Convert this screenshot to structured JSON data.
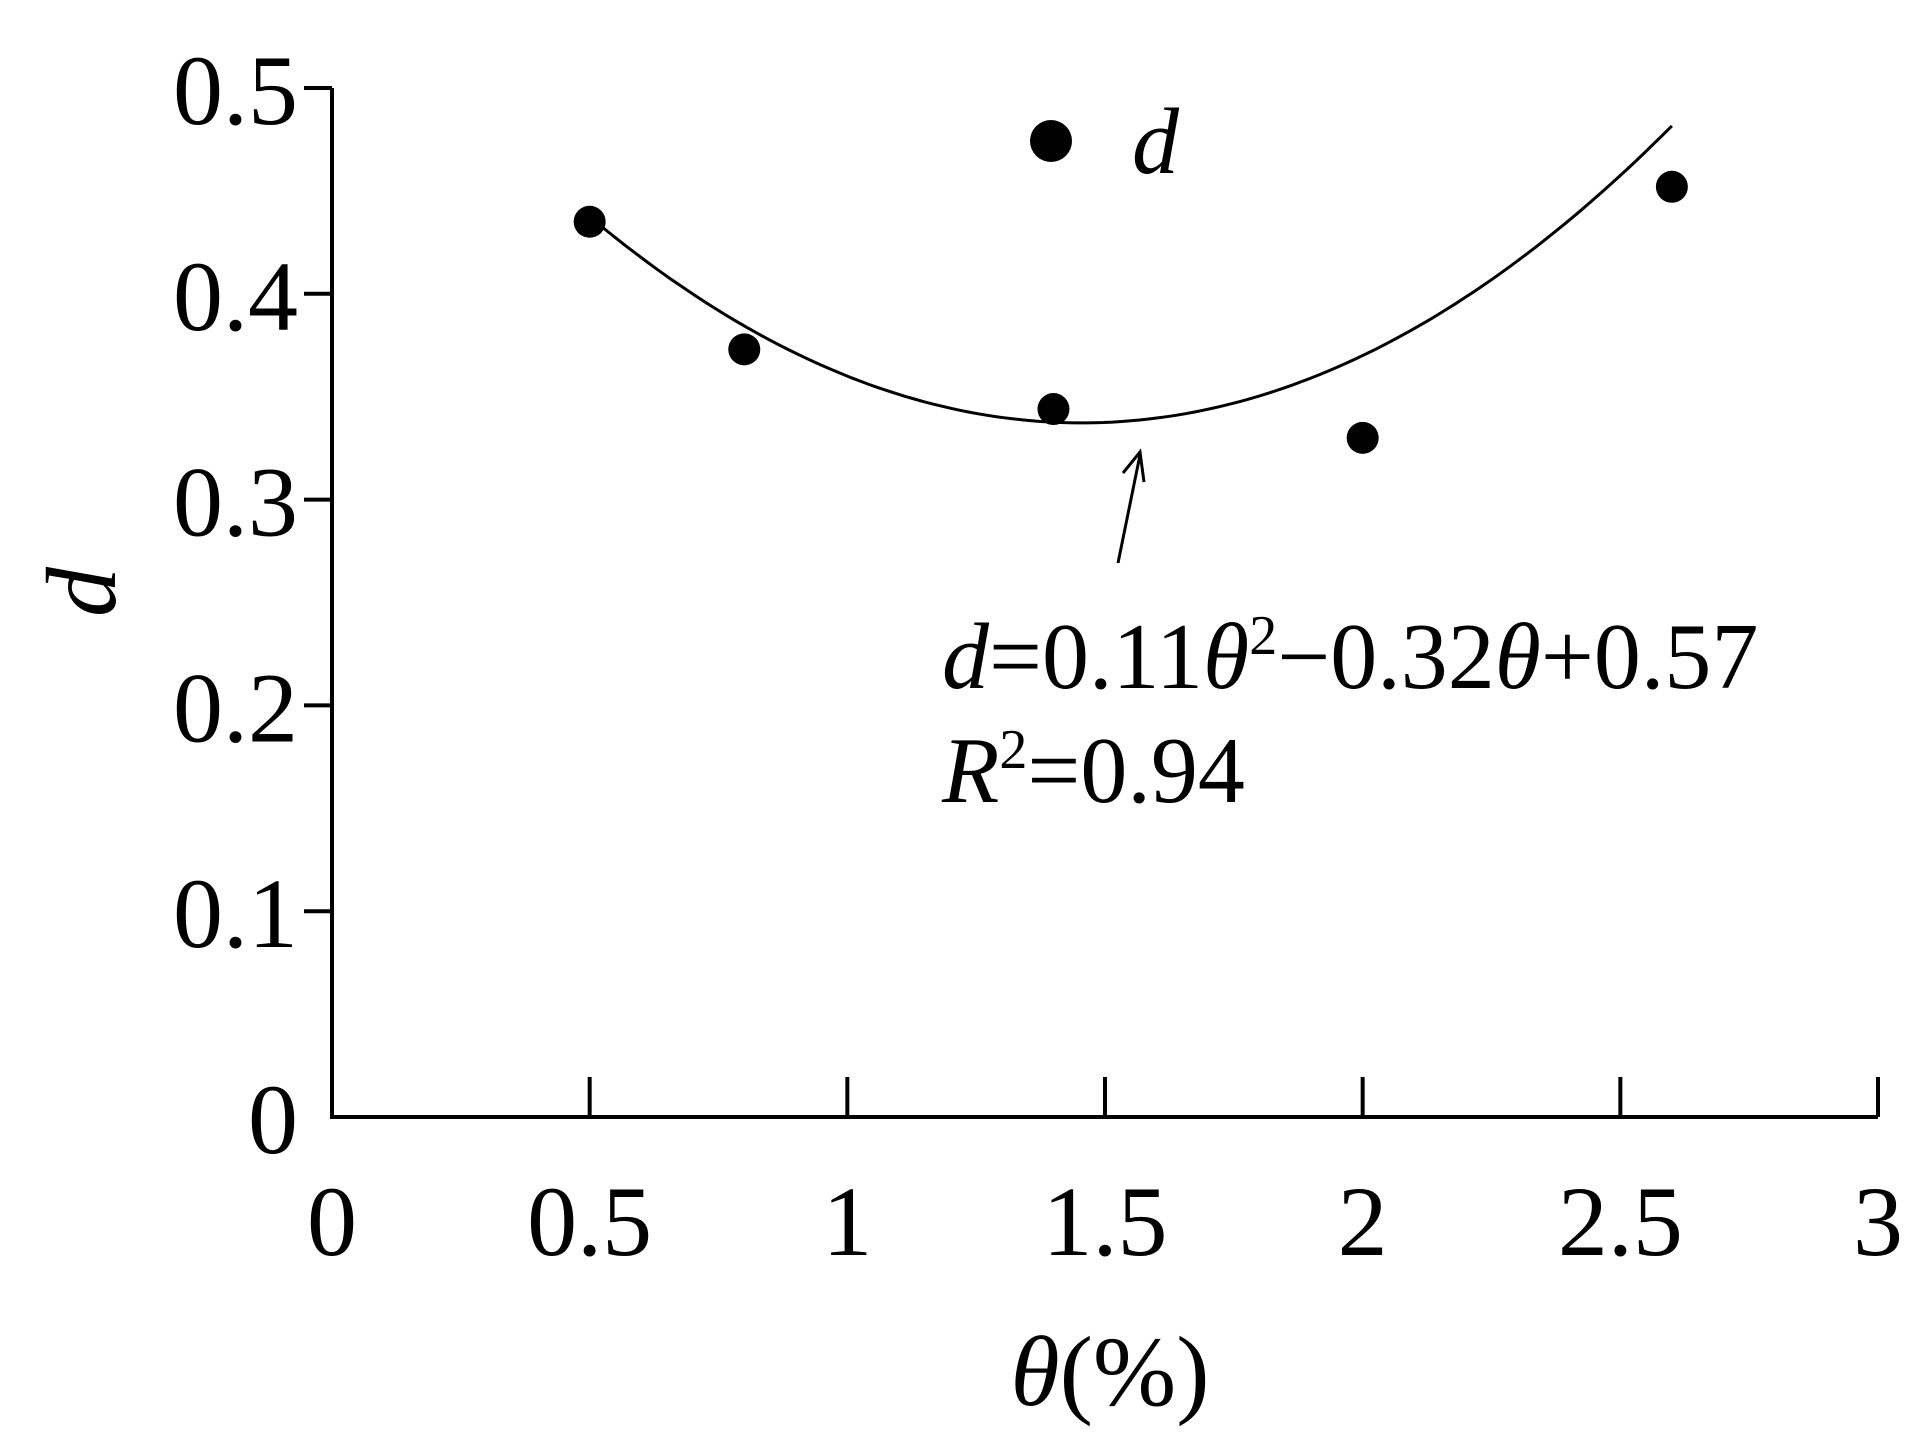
{
  "chart_data": {
    "type": "scatter",
    "title": "",
    "xlabel": {
      "symbol": "θ",
      "unit": "(%)"
    },
    "ylabel": "d",
    "xlim": [
      0,
      3
    ],
    "ylim": [
      0,
      0.5
    ],
    "x_ticks": [
      "0",
      "0.5",
      "1",
      "1.5",
      "2",
      "2.5",
      "3"
    ],
    "y_ticks": [
      "0",
      "0.1",
      "0.2",
      "0.3",
      "0.4",
      "0.5"
    ],
    "grid": false,
    "legend": {
      "label": "d",
      "position": "top-center"
    },
    "series": [
      {
        "name": "d",
        "marker": "filled-circle",
        "color": "#000000",
        "points": [
          {
            "x": 0.5,
            "y": 0.435
          },
          {
            "x": 0.8,
            "y": 0.373
          },
          {
            "x": 1.4,
            "y": 0.344
          },
          {
            "x": 2.0,
            "y": 0.33
          },
          {
            "x": 2.6,
            "y": 0.452
          }
        ]
      }
    ],
    "fit": {
      "type": "quadratic",
      "coefficients": {
        "a": 0.11,
        "b": -0.32,
        "c": 0.57
      },
      "x_range": [
        0.5,
        2.6
      ]
    },
    "annotations": {
      "equation": {
        "lhs": "d",
        "eq1": "=0.11",
        "t1": "θ",
        "sup": "2",
        "mid": "−0.32",
        "t2": "θ",
        "rest": "+0.57"
      },
      "r2": {
        "r": "R",
        "sup": "2",
        "rest": "=0.94"
      }
    }
  }
}
